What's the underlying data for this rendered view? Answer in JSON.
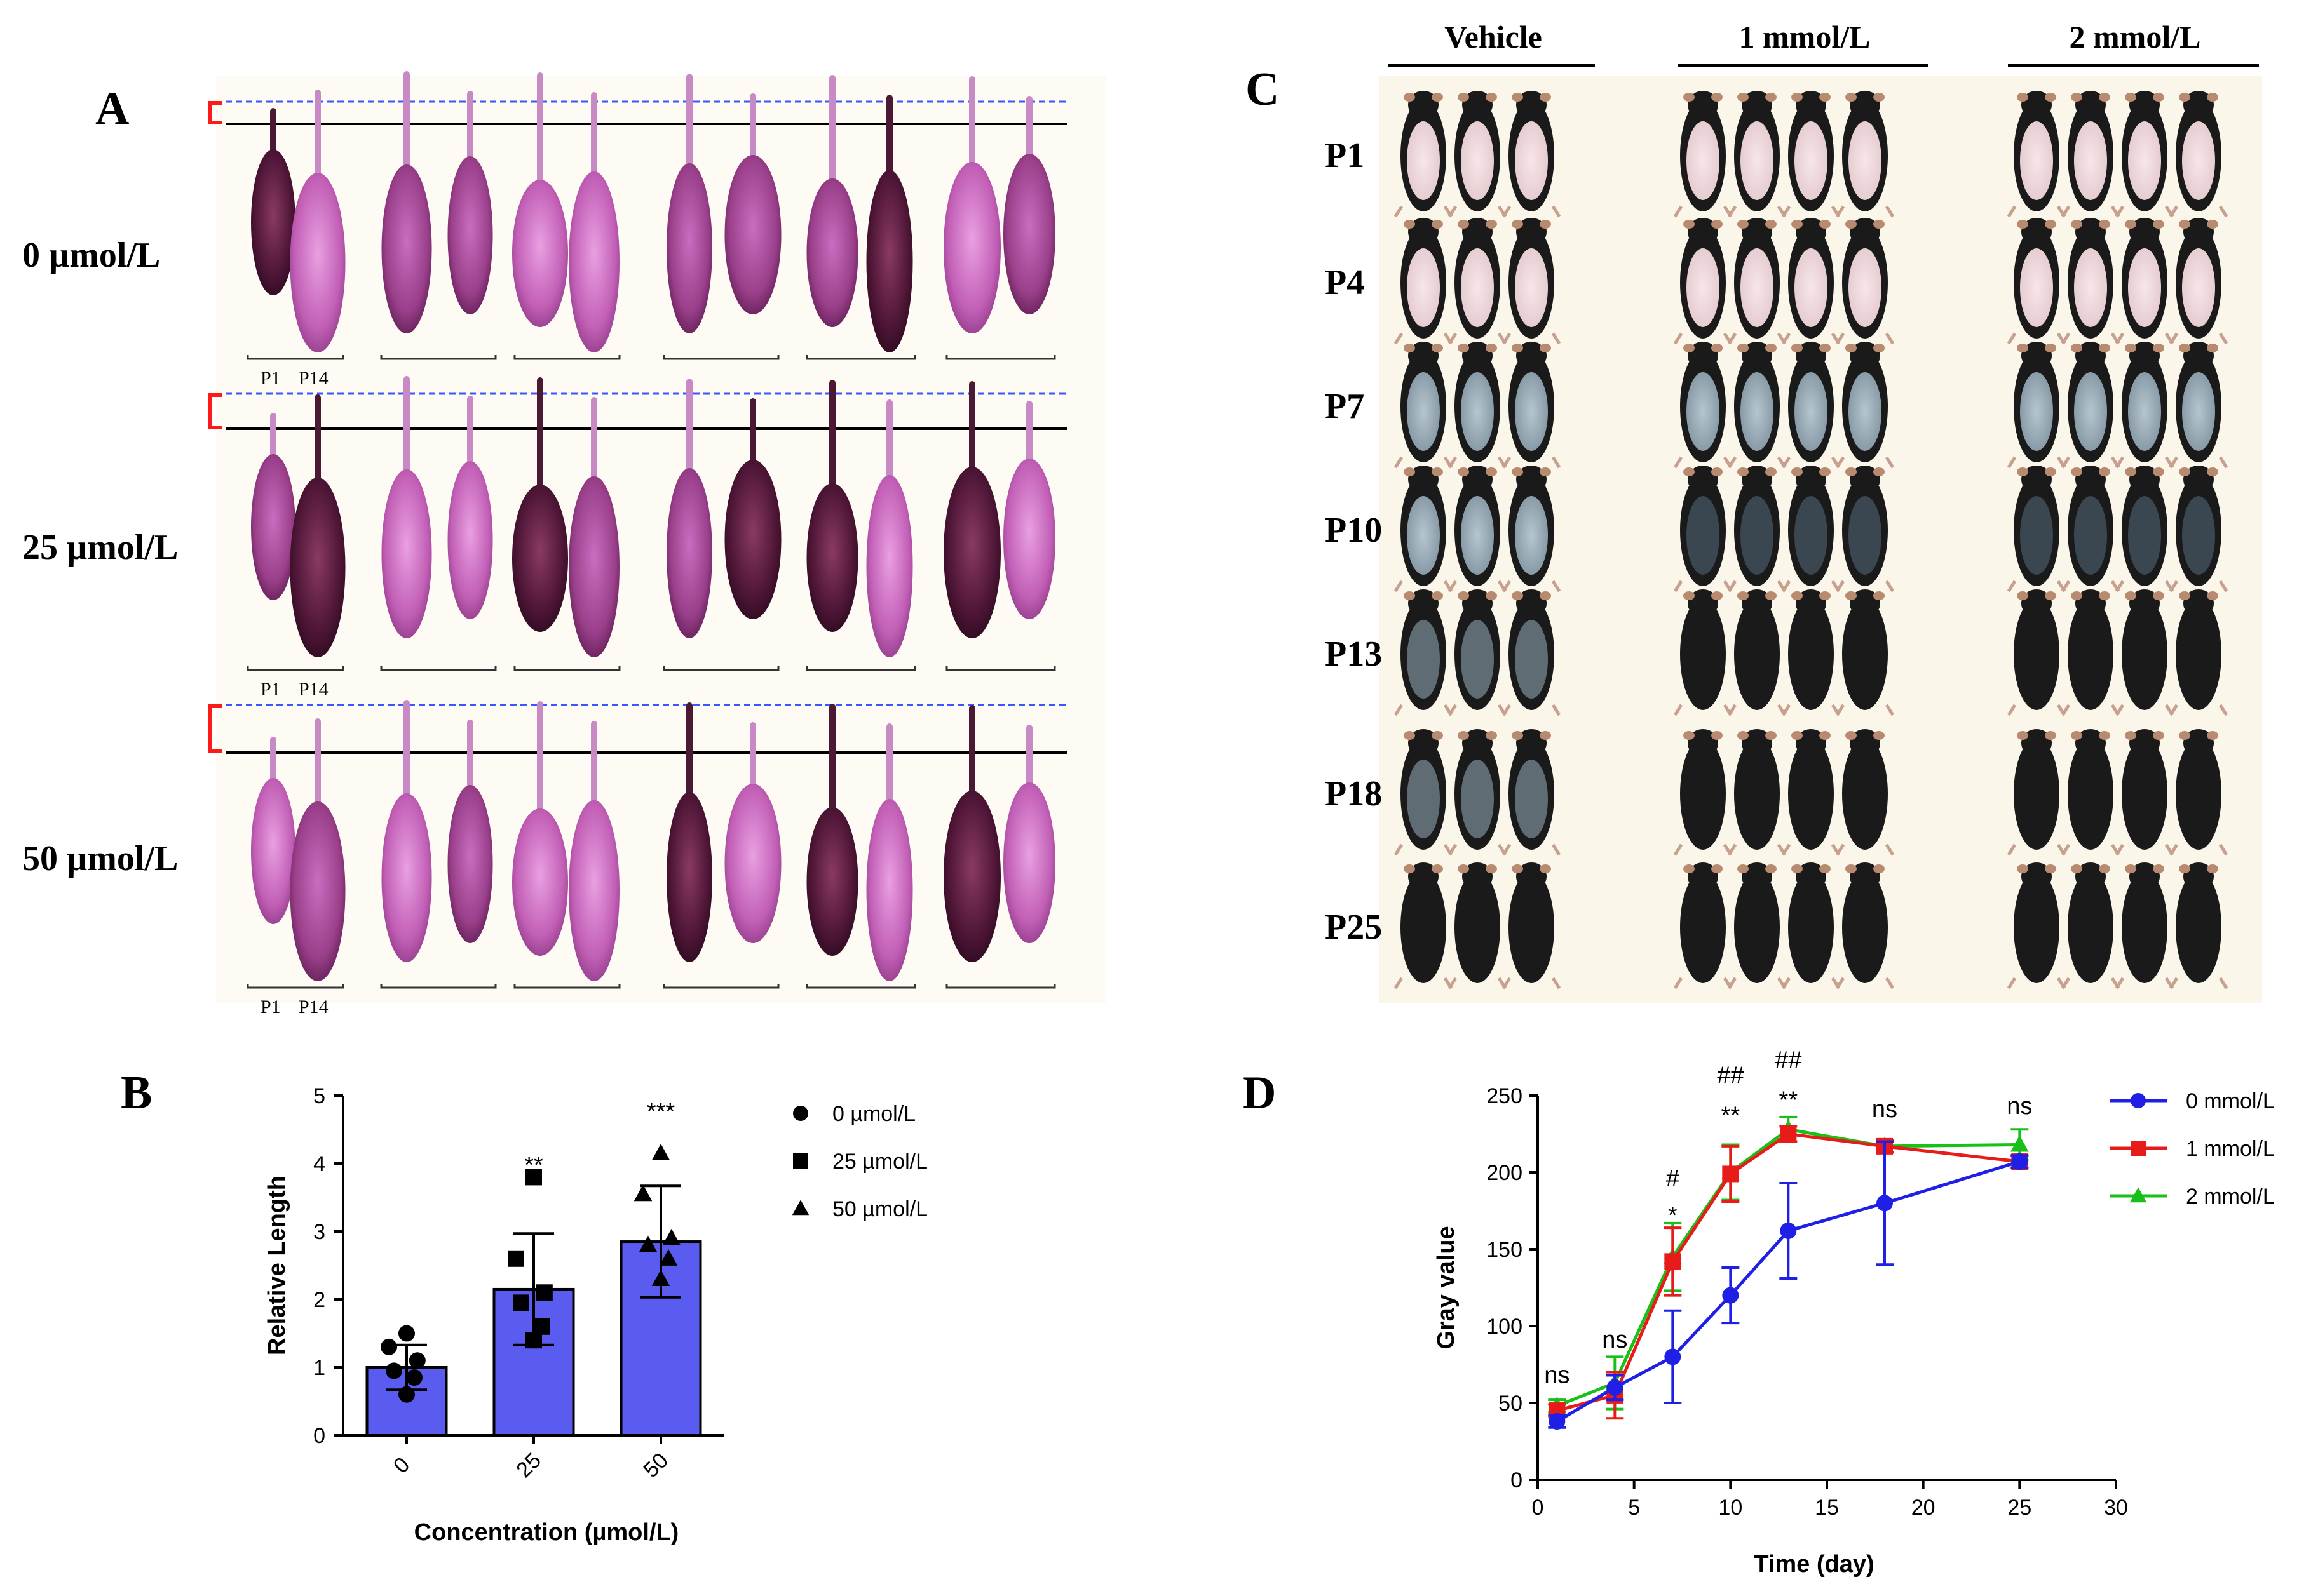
{
  "panels": {
    "A": {
      "letter": "A",
      "rows": [
        {
          "label": "0 µmol/L",
          "pair_labels": [
            "P1",
            "P14"
          ]
        },
        {
          "label": "25 µmol/L",
          "pair_labels": [
            "P1",
            "P14"
          ]
        },
        {
          "label": "50 µmol/L",
          "pair_labels": [
            "P1",
            "P14"
          ]
        }
      ]
    },
    "B": {
      "letter": "B"
    },
    "C": {
      "letter": "C",
      "groups": [
        "Vehicle",
        "1 mmol/L",
        "2 mmol/L"
      ],
      "rows": [
        "P1",
        "P4",
        "P7",
        "P10",
        "P13",
        "P18",
        "P25"
      ]
    },
    "D": {
      "letter": "D"
    }
  },
  "chart_data": [
    {
      "panel": "B",
      "type": "bar",
      "categories": [
        "0",
        "25",
        "50"
      ],
      "values": [
        1.0,
        2.15,
        2.85
      ],
      "errors": [
        0.33,
        0.82,
        0.82
      ],
      "points": [
        [
          1.5,
          1.3,
          1.1,
          0.95,
          0.85,
          0.6
        ],
        [
          3.8,
          2.6,
          2.1,
          1.95,
          1.6,
          1.4
        ],
        [
          4.15,
          3.55,
          2.9,
          2.8,
          2.6,
          2.3
        ]
      ],
      "markers": [
        "circle",
        "square",
        "triangle"
      ],
      "significance": [
        "",
        "**",
        "***"
      ],
      "legend": [
        "0 µmol/L",
        "25 µmol/L",
        "50 µmol/L"
      ],
      "xlabel": "Concentration (µmol/L)",
      "ylabel": "Relative Length",
      "ylim": [
        0,
        5
      ],
      "yticks": [
        "0",
        "1",
        "2",
        "3",
        "4",
        "5"
      ],
      "bar_color": "#5a5cf0",
      "grid": false,
      "legend_position": "right"
    },
    {
      "panel": "D",
      "type": "line",
      "xlabel": "Time (day)",
      "ylabel": "Gray value",
      "xlim": [
        0,
        30
      ],
      "ylim": [
        0,
        250
      ],
      "xticks": [
        "0",
        "5",
        "10",
        "15",
        "20",
        "25",
        "30"
      ],
      "yticks": [
        "0",
        "50",
        "100",
        "150",
        "200",
        "250"
      ],
      "series": [
        {
          "name": "0 mmol/L",
          "color": "#1f1fe6",
          "marker": "circle",
          "x": [
            1,
            4,
            7,
            10,
            13,
            18,
            25
          ],
          "y": [
            38,
            60,
            80,
            120,
            162,
            180,
            207
          ],
          "err": [
            4,
            8,
            30,
            18,
            31,
            40,
            4
          ]
        },
        {
          "name": "1 mmol/L",
          "color": "#e81b1b",
          "marker": "square",
          "x": [
            1,
            4,
            7,
            10,
            13,
            18,
            25
          ],
          "y": [
            45,
            55,
            142,
            199,
            225,
            217,
            207
          ],
          "err": [
            4,
            15,
            22,
            18,
            5,
            4,
            4
          ]
        },
        {
          "name": "2 mmol/L",
          "color": "#18c018",
          "marker": "triangle",
          "x": [
            1,
            4,
            7,
            10,
            13,
            18,
            25
          ],
          "y": [
            48,
            63,
            145,
            200,
            228,
            217,
            218
          ],
          "err": [
            4,
            17,
            22,
            18,
            8,
            4,
            10
          ]
        }
      ],
      "annotations": [
        {
          "x": 1,
          "y": 63,
          "text": "ns"
        },
        {
          "x": 4,
          "y": 86,
          "text": "ns"
        },
        {
          "x": 7,
          "y": 191,
          "text": "#"
        },
        {
          "x": 7,
          "y": 167,
          "text": "*"
        },
        {
          "x": 10,
          "y": 258,
          "text": "##"
        },
        {
          "x": 10,
          "y": 232,
          "text": "**"
        },
        {
          "x": 13,
          "y": 268,
          "text": "##"
        },
        {
          "x": 13,
          "y": 242,
          "text": "**"
        },
        {
          "x": 18,
          "y": 236,
          "text": "ns"
        },
        {
          "x": 25,
          "y": 238,
          "text": "ns"
        }
      ],
      "grid": false,
      "legend_position": "top-right"
    }
  ]
}
